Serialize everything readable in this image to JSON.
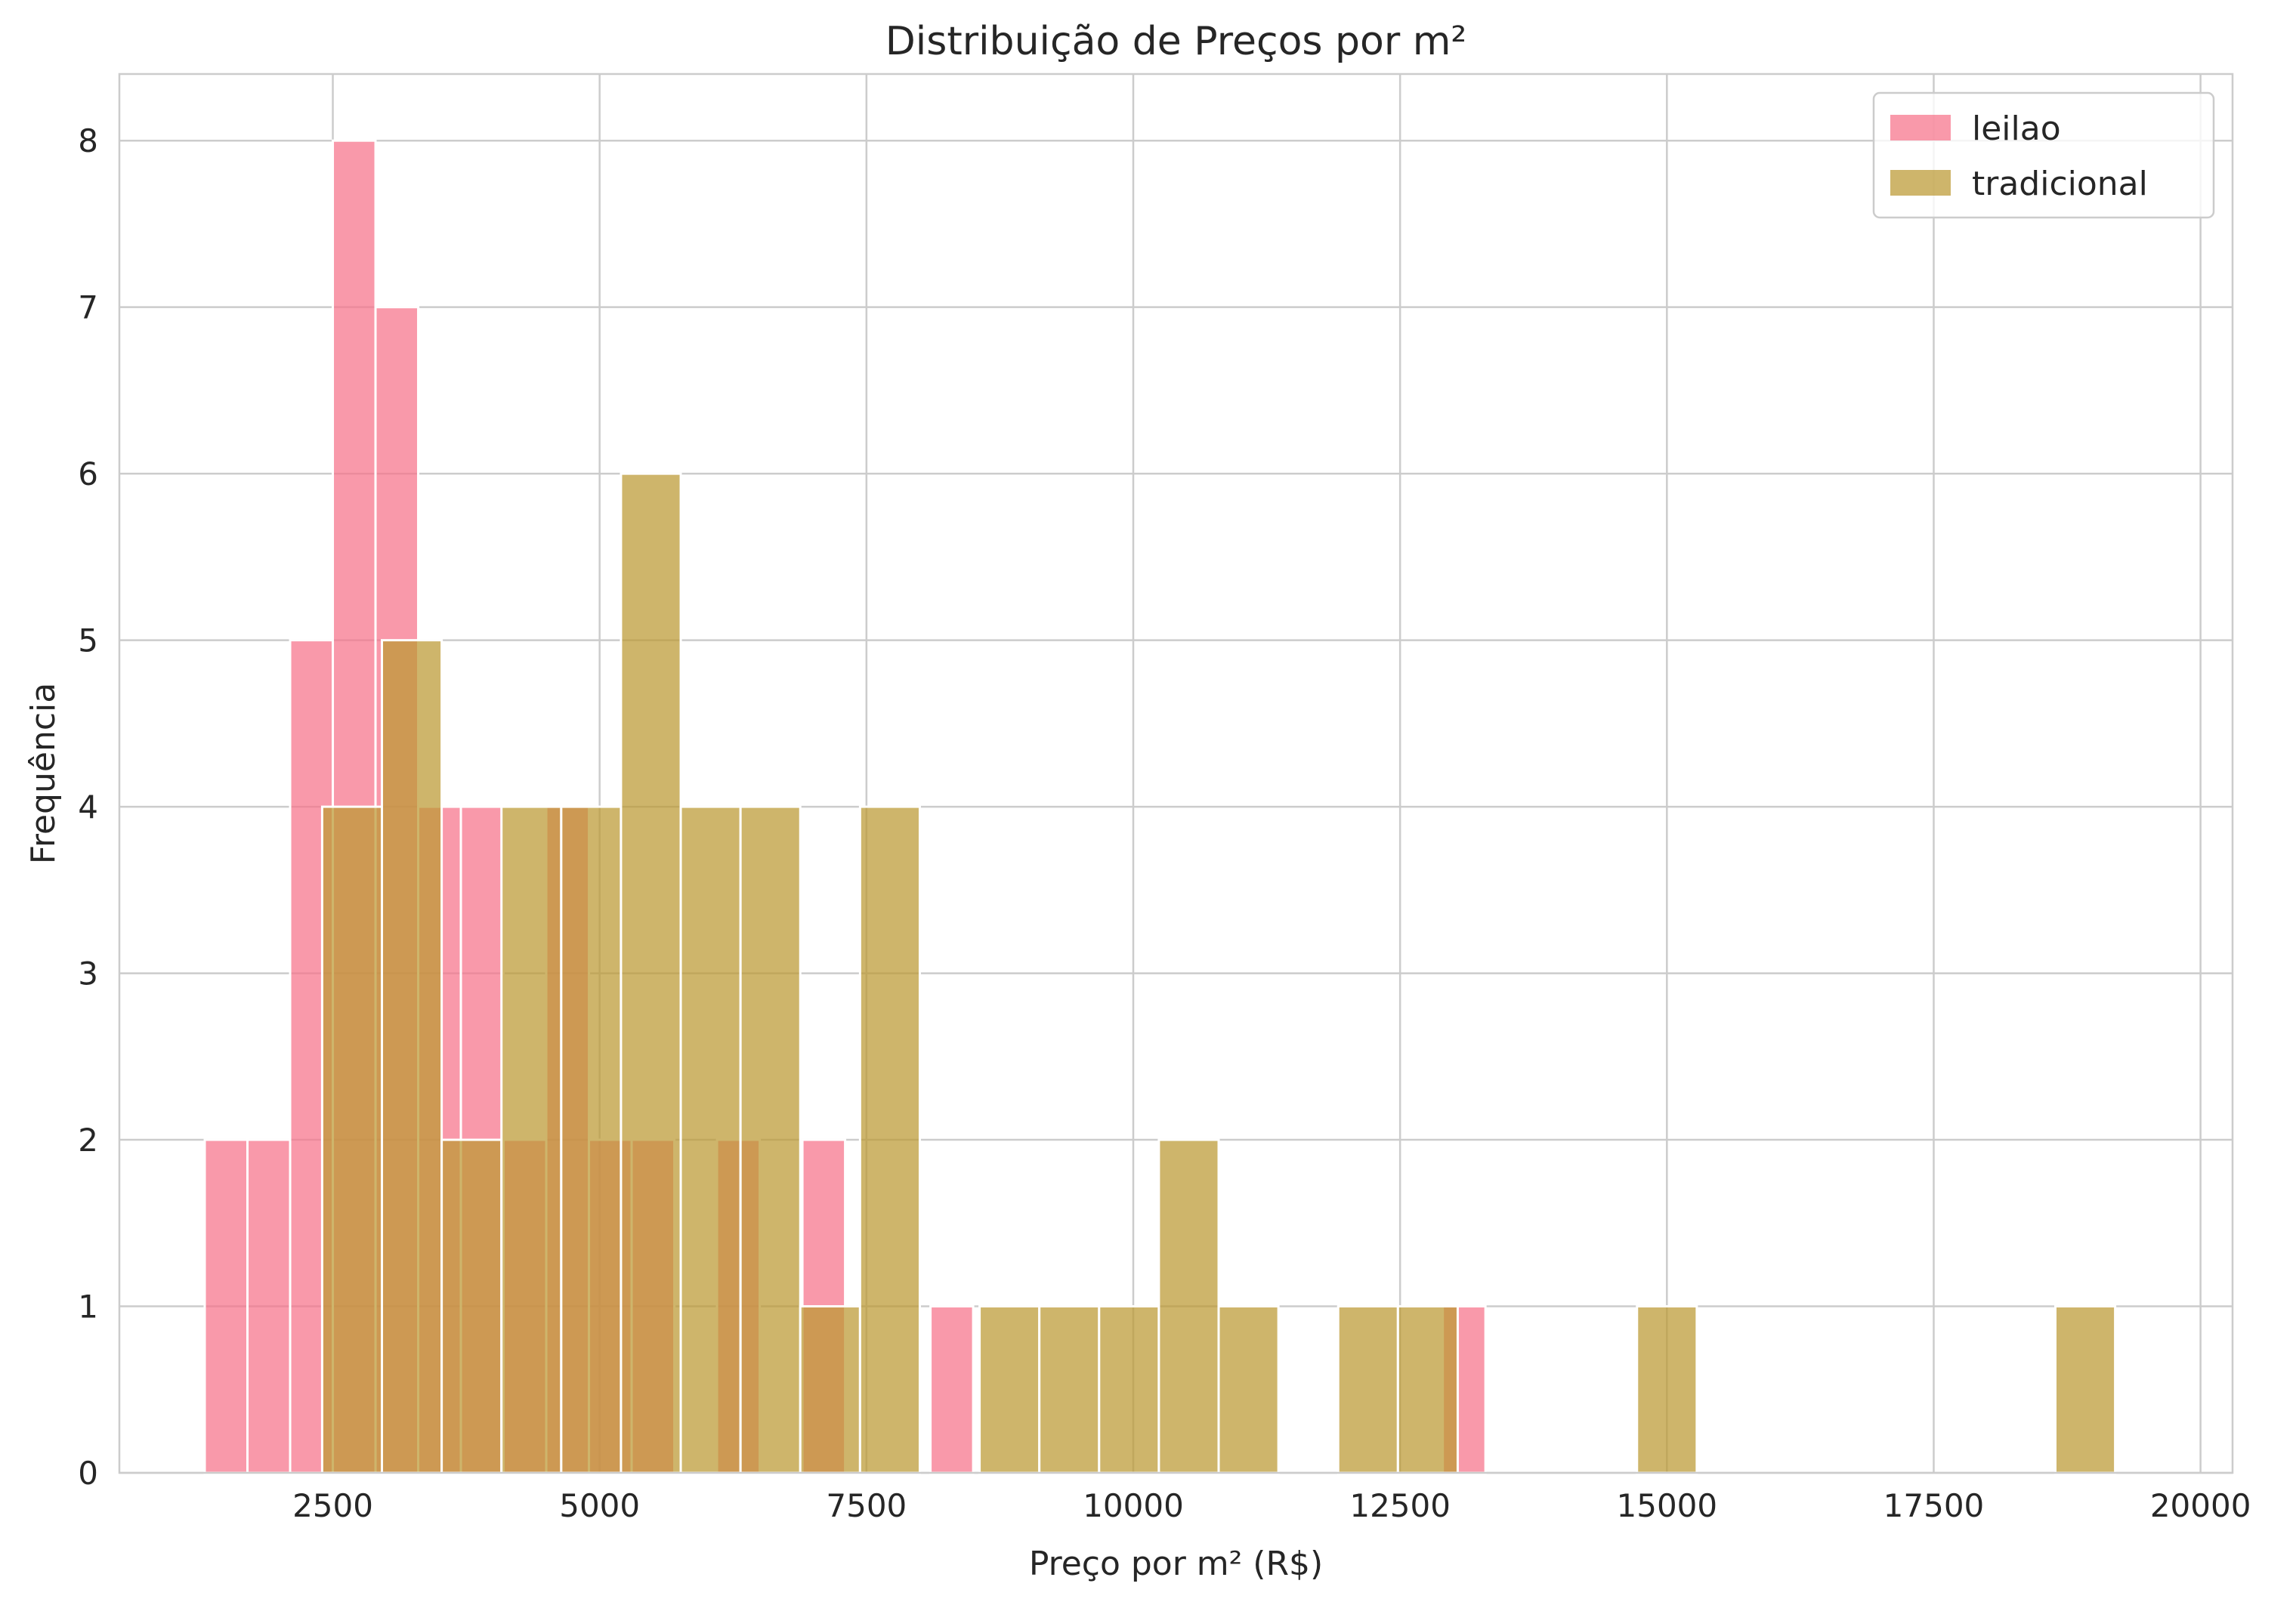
{
  "chart_data": {
    "type": "bar",
    "subtype": "overlapping-histogram",
    "title": "Distribuição de Preços por m²",
    "xlabel": "Preço por m² (R$)",
    "ylabel": "Frequência",
    "xlim": [
      500,
      20300
    ],
    "ylim": [
      0,
      8.4
    ],
    "xticks": [
      2500,
      5000,
      7500,
      10000,
      12500,
      15000,
      17500,
      20000
    ],
    "yticks": [
      0,
      1,
      2,
      3,
      4,
      5,
      6,
      7,
      8
    ],
    "grid": true,
    "legend_position": "top-right",
    "series": [
      {
        "name": "leilao",
        "color": "#f77189",
        "opacity": 0.72,
        "bins": [
          {
            "x0": 1300,
            "x1": 1700,
            "count": 2
          },
          {
            "x0": 1700,
            "x1": 2100,
            "count": 2
          },
          {
            "x0": 2100,
            "x1": 2500,
            "count": 5
          },
          {
            "x0": 2500,
            "x1": 2900,
            "count": 8
          },
          {
            "x0": 2900,
            "x1": 3300,
            "count": 7
          },
          {
            "x0": 3300,
            "x1": 3700,
            "count": 4
          },
          {
            "x0": 3700,
            "x1": 4100,
            "count": 4
          },
          {
            "x0": 4100,
            "x1": 4500,
            "count": 2
          },
          {
            "x0": 4500,
            "x1": 4900,
            "count": 4
          },
          {
            "x0": 4900,
            "x1": 5300,
            "count": 2
          },
          {
            "x0": 5300,
            "x1": 5700,
            "count": 2
          },
          {
            "x0": 5700,
            "x1": 6100,
            "count": 0
          },
          {
            "x0": 6100,
            "x1": 6500,
            "count": 2
          },
          {
            "x0": 6500,
            "x1": 6900,
            "count": 0
          },
          {
            "x0": 6900,
            "x1": 7300,
            "count": 2
          },
          {
            "x0": 7300,
            "x1": 7700,
            "count": 0
          },
          {
            "x0": 7700,
            "x1": 8100,
            "count": 0
          },
          {
            "x0": 8100,
            "x1": 8500,
            "count": 1
          },
          {
            "x0": 8500,
            "x1": 12900,
            "count": 0
          },
          {
            "x0": 12900,
            "x1": 13300,
            "count": 1
          }
        ]
      },
      {
        "name": "tradicional",
        "color": "#bb9832",
        "opacity": 0.72,
        "bins": [
          {
            "x0": 2400,
            "x1": 2960,
            "count": 4
          },
          {
            "x0": 2960,
            "x1": 3520,
            "count": 5
          },
          {
            "x0": 3520,
            "x1": 4080,
            "count": 2
          },
          {
            "x0": 4080,
            "x1": 4640,
            "count": 4
          },
          {
            "x0": 4640,
            "x1": 5200,
            "count": 4
          },
          {
            "x0": 5200,
            "x1": 5760,
            "count": 6
          },
          {
            "x0": 5760,
            "x1": 6320,
            "count": 4
          },
          {
            "x0": 6320,
            "x1": 6880,
            "count": 4
          },
          {
            "x0": 6880,
            "x1": 7440,
            "count": 1
          },
          {
            "x0": 7440,
            "x1": 8000,
            "count": 4
          },
          {
            "x0": 8000,
            "x1": 8560,
            "count": 0
          },
          {
            "x0": 8560,
            "x1": 9120,
            "count": 1
          },
          {
            "x0": 9120,
            "x1": 9680,
            "count": 1
          },
          {
            "x0": 9680,
            "x1": 10240,
            "count": 1
          },
          {
            "x0": 10240,
            "x1": 10800,
            "count": 2
          },
          {
            "x0": 10800,
            "x1": 11360,
            "count": 1
          },
          {
            "x0": 11360,
            "x1": 11920,
            "count": 0
          },
          {
            "x0": 11920,
            "x1": 12480,
            "count": 1
          },
          {
            "x0": 12480,
            "x1": 13040,
            "count": 1
          },
          {
            "x0": 13040,
            "x1": 14720,
            "count": 0
          },
          {
            "x0": 14720,
            "x1": 15280,
            "count": 1
          },
          {
            "x0": 15280,
            "x1": 18640,
            "count": 0
          },
          {
            "x0": 18640,
            "x1": 19200,
            "count": 1
          }
        ]
      }
    ]
  }
}
